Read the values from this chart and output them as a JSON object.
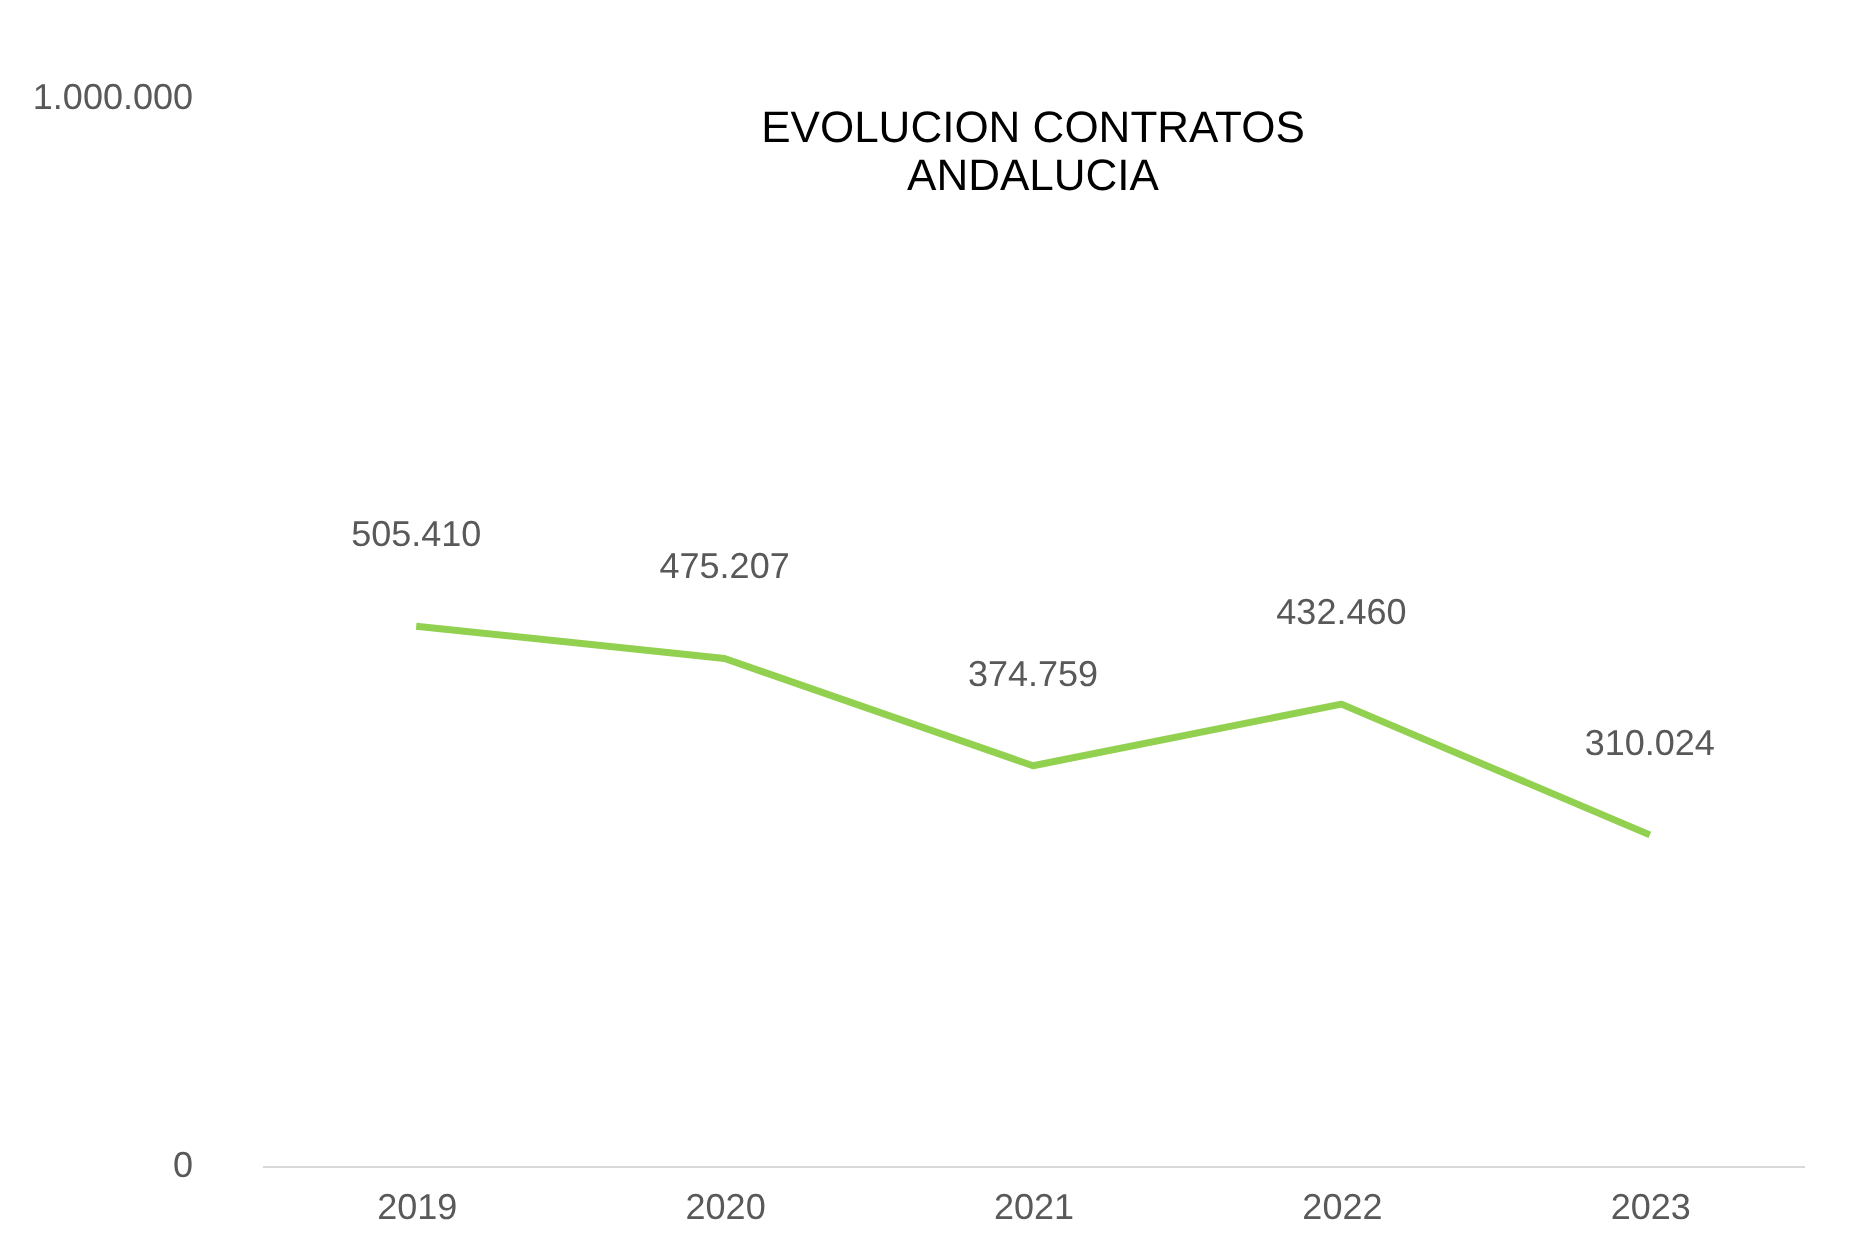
{
  "chart_data": {
    "type": "line",
    "title": [
      "EVOLUCION CONTRATOS",
      "ANDALUCIA"
    ],
    "categories": [
      "2019",
      "2020",
      "2021",
      "2022",
      "2023"
    ],
    "series": [
      {
        "color": "#92d050",
        "values": [
          505410,
          475207,
          374759,
          432460,
          310024
        ],
        "value_labels": [
          "505.410",
          "475.207",
          "374.759",
          "432.460",
          "310.024"
        ]
      }
    ],
    "ylim": [
      0,
      1000000
    ],
    "yticks": [
      0,
      {
        "value": 1000000,
        "label": "1.000.000"
      }
    ],
    "grid": false,
    "legend": false,
    "marker": "none",
    "line_style": "solid"
  }
}
